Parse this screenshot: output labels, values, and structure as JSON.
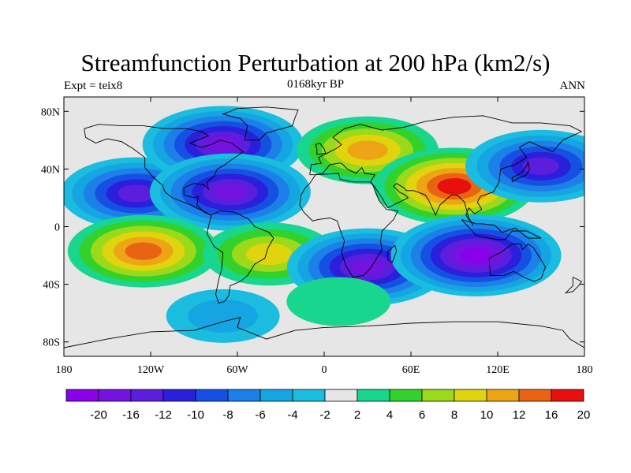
{
  "chart_data": {
    "type": "heatmap",
    "title": "Streamfunction Perturbation at 200 hPa (km2/s)",
    "left_subtitle": "Expt = teix8",
    "center_subtitle": "0168kyr BP",
    "right_subtitle": "ANN",
    "x_ticks": [
      "180",
      "120W",
      "60W",
      "0",
      "60E",
      "120E",
      "180"
    ],
    "y_ticks": [
      "80N",
      "40N",
      "0",
      "40S",
      "80S"
    ],
    "xlim": [
      -180,
      180
    ],
    "ylim": [
      -90,
      90
    ],
    "colorbar": {
      "labels": [
        "-20",
        "-16",
        "-12",
        "-10",
        "-8",
        "-6",
        "-4",
        "-2",
        "2",
        "4",
        "6",
        "8",
        "10",
        "12",
        "16",
        "20"
      ],
      "colors": [
        "#8A00E8",
        "#7412E0",
        "#5A1EDC",
        "#2A1FDB",
        "#1550E3",
        "#1D7FE8",
        "#14A5E2",
        "#1ABCE0",
        "#E6E6E6",
        "#18D68D",
        "#33D12C",
        "#9BD91A",
        "#E0D40F",
        "#EDA516",
        "#E86412",
        "#E80F0F"
      ]
    },
    "features": [
      {
        "name": "north-pacific-low",
        "lon": -130,
        "lat": 23,
        "value": -12
      },
      {
        "name": "canada-low",
        "lon": -70,
        "lat": 57,
        "value": -16
      },
      {
        "name": "atlantic-low",
        "lon": -65,
        "lat": 24,
        "value": -16
      },
      {
        "name": "eurasia-high",
        "lon": 30,
        "lat": 53,
        "value": 12
      },
      {
        "name": "asia-high",
        "lon": 90,
        "lat": 28,
        "value": 20
      },
      {
        "name": "pacific-west-low",
        "lon": 150,
        "lat": 42,
        "value": -12
      },
      {
        "name": "south-pacific-high",
        "lon": -125,
        "lat": -17,
        "value": 16
      },
      {
        "name": "south-america-high",
        "lon": -38,
        "lat": -19,
        "value": 10
      },
      {
        "name": "south-africa-low",
        "lon": 30,
        "lat": -28,
        "value": -16
      },
      {
        "name": "indian-ocean-low",
        "lon": 105,
        "lat": -20,
        "value": -20
      },
      {
        "name": "southern-ocean-high",
        "lon": 10,
        "lat": -52,
        "value": 4
      },
      {
        "name": "antarctic-low",
        "lon": -70,
        "lat": -62,
        "value": -4
      }
    ]
  }
}
